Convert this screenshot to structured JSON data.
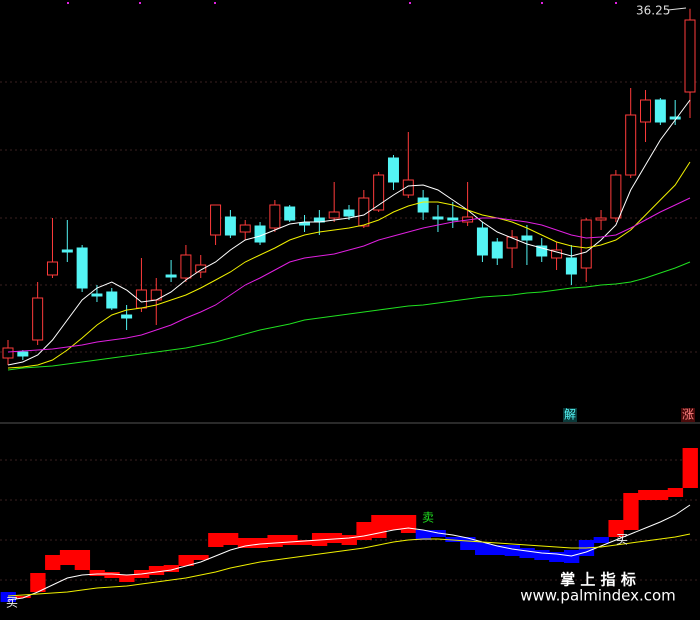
{
  "chart_data": [
    {
      "type": "candlestick",
      "up_color": "#ff3b3b",
      "down_color": "#54f4f4",
      "ylim": [
        19.8,
        36.6
      ],
      "open": [
        22.28,
        22.52,
        23.0,
        25.6,
        26.6,
        26.68,
        24.84,
        24.92,
        24.0,
        24.28,
        24.6,
        25.6,
        25.48,
        25.72,
        27.2,
        27.92,
        27.32,
        27.56,
        27.48,
        28.32,
        27.68,
        27.88,
        27.88,
        28.2,
        27.56,
        28.2,
        30.28,
        28.8,
        28.68,
        27.92,
        27.88,
        27.72,
        27.48,
        26.92,
        26.68,
        27.16,
        26.76,
        26.28,
        26.28,
        25.88,
        27.8,
        27.88,
        29.6,
        31.72,
        32.6,
        31.92,
        32.92
      ],
      "high": [
        23.0,
        22.6,
        25.32,
        27.88,
        27.8,
        26.8,
        25.2,
        25.08,
        24.4,
        26.28,
        25.48,
        26.2,
        26.8,
        26.4,
        28.4,
        28.2,
        27.8,
        27.72,
        28.6,
        28.4,
        28.0,
        28.2,
        29.32,
        28.4,
        29.0,
        29.72,
        30.4,
        31.32,
        29.0,
        28.4,
        28.52,
        29.32,
        27.72,
        27.08,
        27.4,
        27.6,
        27.08,
        26.92,
        26.8,
        27.88,
        28.2,
        29.8,
        33.08,
        33.0,
        32.68,
        32.6,
        36.25
      ],
      "low": [
        22.0,
        22.2,
        22.8,
        25.48,
        26.12,
        24.92,
        24.52,
        24.2,
        23.4,
        24.12,
        23.6,
        25.32,
        25.32,
        25.48,
        26.8,
        27.08,
        27.0,
        26.8,
        27.32,
        27.72,
        27.32,
        27.2,
        27.72,
        27.8,
        27.48,
        28.12,
        29.0,
        28.68,
        27.8,
        27.32,
        27.48,
        27.56,
        26.12,
        26.0,
        25.88,
        26.0,
        26.12,
        25.8,
        25.2,
        25.32,
        27.4,
        27.72,
        29.48,
        30.92,
        31.6,
        31.6,
        31.88
      ],
      "close": [
        22.68,
        22.36,
        24.68,
        26.12,
        26.52,
        25.08,
        24.76,
        24.28,
        23.88,
        25.0,
        25.0,
        25.52,
        26.4,
        26.0,
        28.4,
        27.2,
        27.6,
        26.92,
        28.4,
        27.8,
        27.6,
        27.72,
        28.12,
        27.96,
        28.68,
        29.6,
        29.32,
        29.4,
        28.12,
        27.84,
        27.8,
        27.92,
        26.4,
        26.28,
        27.12,
        27.0,
        26.36,
        26.6,
        25.64,
        27.8,
        27.88,
        29.6,
        32.0,
        32.6,
        31.72,
        31.84,
        35.8
      ],
      "lines": [
        {
          "color": "#ffffff",
          "values": [
            22.0,
            22.12,
            22.4,
            23.0,
            23.8,
            24.6,
            25.08,
            25.32,
            25.0,
            24.52,
            24.6,
            24.92,
            25.4,
            25.8,
            26.12,
            26.6,
            27.0,
            27.16,
            27.4,
            27.64,
            27.72,
            27.72,
            27.8,
            27.88,
            28.0,
            28.4,
            28.8,
            29.16,
            29.2,
            29.0,
            28.6,
            28.2,
            27.72,
            27.32,
            27.08,
            26.84,
            26.68,
            26.52,
            26.36,
            26.52,
            27.0,
            27.6,
            29.0,
            30.0,
            31.0,
            31.8,
            32.6
          ]
        },
        {
          "color": "#f0f000",
          "values": [
            21.88,
            21.92,
            22.0,
            22.2,
            22.6,
            23.08,
            23.6,
            24.0,
            24.2,
            24.28,
            24.4,
            24.6,
            24.8,
            25.08,
            25.4,
            25.72,
            26.12,
            26.4,
            26.68,
            27.0,
            27.2,
            27.32,
            27.4,
            27.48,
            27.6,
            27.8,
            28.12,
            28.36,
            28.52,
            28.52,
            28.4,
            28.2,
            28.0,
            27.88,
            27.72,
            27.48,
            27.2,
            26.92,
            26.76,
            26.68,
            26.8,
            27.0,
            27.4,
            28.0,
            28.6,
            29.2,
            30.12
          ]
        },
        {
          "color": "#e020e0",
          "values": [
            22.52,
            22.56,
            22.6,
            22.64,
            22.72,
            22.8,
            22.92,
            23.0,
            23.08,
            23.2,
            23.4,
            23.6,
            23.88,
            24.12,
            24.4,
            24.8,
            25.2,
            25.48,
            25.8,
            26.12,
            26.28,
            26.36,
            26.44,
            26.6,
            26.76,
            27.0,
            27.16,
            27.32,
            27.48,
            27.6,
            27.72,
            27.8,
            27.88,
            27.88,
            27.8,
            27.72,
            27.6,
            27.4,
            27.2,
            27.08,
            27.12,
            27.2,
            27.48,
            27.8,
            28.12,
            28.4,
            28.68
          ]
        },
        {
          "color": "#20e020",
          "values": [
            21.8,
            21.88,
            21.92,
            21.96,
            22.04,
            22.12,
            22.2,
            22.28,
            22.36,
            22.44,
            22.52,
            22.6,
            22.68,
            22.8,
            22.92,
            23.08,
            23.24,
            23.4,
            23.52,
            23.64,
            23.8,
            23.88,
            23.96,
            24.04,
            24.12,
            24.2,
            24.28,
            24.36,
            24.4,
            24.48,
            24.56,
            24.64,
            24.72,
            24.76,
            24.8,
            24.88,
            24.92,
            25.0,
            25.08,
            25.12,
            25.2,
            25.24,
            25.32,
            25.48,
            25.68,
            25.88,
            26.12
          ]
        }
      ]
    },
    {
      "type": "blocks",
      "up_color": "#ff0000",
      "down_color": "#0000ff",
      "ylim": [
        0,
        95
      ],
      "open": [
        11.5,
        8.5,
        11.5,
        22.5,
        25,
        22.5,
        19.5,
        18.5,
        16.5,
        18.5,
        20,
        21.5,
        24.5,
        27.5,
        34,
        35,
        33.5,
        33.5,
        34,
        35,
        35,
        34.5,
        36,
        35,
        37.5,
        38.5,
        42.5,
        41,
        42.5,
        42.5,
        39,
        39,
        36.5,
        35,
        35,
        33.5,
        32.5,
        31.5,
        32.5,
        37.5,
        39,
        39,
        42.5,
        57.5,
        57.5,
        59,
        63.5
      ],
      "close": [
        6.5,
        9.5,
        21,
        30,
        32.5,
        32.5,
        22.5,
        21.5,
        20,
        22.5,
        24.5,
        25,
        30,
        30,
        41,
        41,
        38.5,
        38.5,
        40,
        40,
        37.5,
        41,
        41,
        40,
        46.5,
        50,
        50,
        50,
        37.5,
        39,
        36.5,
        32.5,
        30,
        30,
        29.5,
        28.5,
        27.5,
        26.5,
        26,
        29.5,
        36,
        47.5,
        61,
        62.5,
        62.5,
        63.5,
        83.5
      ],
      "lines": [
        {
          "color": "#ffffff",
          "values": [
            7.5,
            8.5,
            11.5,
            15,
            18.5,
            20,
            20.5,
            20.5,
            20,
            20.5,
            21.5,
            22.5,
            24.5,
            26.5,
            29.5,
            32.5,
            34.5,
            35.5,
            36,
            36.5,
            37,
            37.5,
            38,
            38.5,
            39.5,
            41,
            42.5,
            43.5,
            42.5,
            41,
            40,
            38.5,
            36.5,
            34.5,
            33,
            32,
            31,
            30.5,
            29.5,
            31.5,
            34.5,
            37.5,
            40.5,
            43.5,
            46.5,
            50,
            55
          ]
        },
        {
          "color": "#f0f000",
          "values": [
            9.5,
            10,
            10.5,
            11,
            11.5,
            12.5,
            13.5,
            14,
            14.5,
            15.5,
            16.5,
            17.5,
            18.5,
            20,
            21.5,
            23.5,
            25,
            26.5,
            27.5,
            28.5,
            29.5,
            30.5,
            31.5,
            32.5,
            33.5,
            35,
            36.5,
            37.5,
            38,
            38,
            37.5,
            37,
            36.5,
            36,
            35.5,
            35,
            34.5,
            34,
            33.5,
            33.5,
            34,
            35,
            36,
            37,
            38,
            39,
            40.5
          ]
        }
      ]
    }
  ],
  "annotations": [
    "解",
    "涨",
    "卖",
    "买",
    "买"
  ],
  "watermark": {
    "title": "掌 上 指 标",
    "url": "www.palmindex.com"
  }
}
